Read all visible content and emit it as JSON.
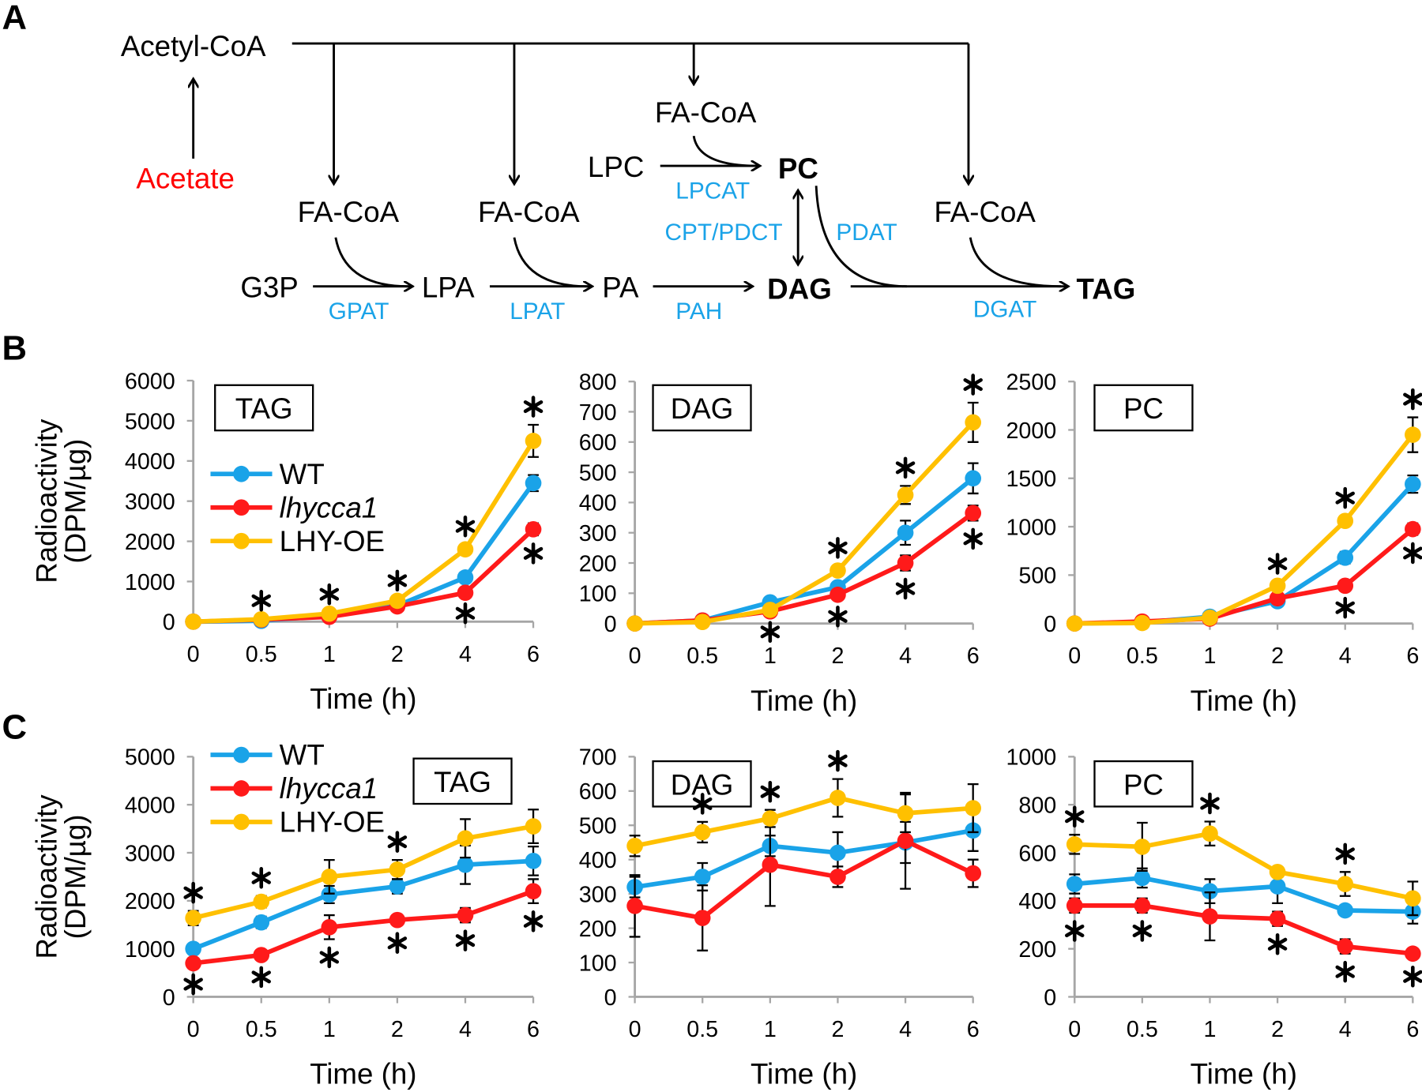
{
  "panels": {
    "a": "A",
    "b": "B",
    "c": "C"
  },
  "diagram": {
    "acetyl_coa": "Acetyl-CoA",
    "acetate": "Acetate",
    "fa_coa": "FA-CoA",
    "lpc": "LPC",
    "pc": "PC",
    "lpcat": "LPCAT",
    "cpt_pdct": "CPT/PDCT",
    "pdat": "PDAT",
    "g3p": "G3P",
    "gpat": "GPAT",
    "lpa": "LPA",
    "lpat": "LPAT",
    "pa": "PA",
    "pah": "PAH",
    "dag": "DAG",
    "dgat": "DGAT",
    "tag": "TAG",
    "colors": {
      "substrate_red": "#ff0000",
      "enzyme_blue": "#1aa3e8"
    }
  },
  "chart_data": [
    {
      "panel": "B",
      "type": "line",
      "title": "TAG",
      "xlabel": "Time (h)",
      "ylabel": [
        "Radioactivity",
        "(DPM/µg)"
      ],
      "categories": [
        "0",
        "0.5",
        "1",
        "2",
        "4",
        "6"
      ],
      "ylim": [
        0,
        6000
      ],
      "yticks": [
        0,
        1000,
        2000,
        3000,
        4000,
        5000,
        6000
      ],
      "legend": true,
      "legend_position": "top-left",
      "series": [
        {
          "name": "WT",
          "color": "#1aa3e8",
          "values": [
            0,
            20,
            150,
            400,
            1100,
            3450
          ],
          "errors": [
            0,
            10,
            20,
            40,
            80,
            200
          ]
        },
        {
          "name": "lhycca1",
          "color": "#ff1a1a",
          "values": [
            0,
            50,
            120,
            380,
            720,
            2300
          ],
          "errors": [
            0,
            10,
            20,
            40,
            60,
            150
          ]
        },
        {
          "name": "LHY-OE",
          "color": "#ffc000",
          "values": [
            0,
            60,
            200,
            520,
            1800,
            4500
          ],
          "errors": [
            0,
            10,
            30,
            50,
            120,
            400
          ]
        }
      ],
      "asterisks": [
        [
          "0.5",
          "above"
        ],
        [
          "1",
          "above"
        ],
        [
          "2",
          "above"
        ],
        [
          "4",
          "above"
        ],
        [
          "4",
          "below"
        ],
        [
          "6",
          "above"
        ],
        [
          "6",
          "below"
        ]
      ]
    },
    {
      "panel": "B",
      "type": "line",
      "title": "DAG",
      "xlabel": "Time (h)",
      "categories": [
        "0",
        "0.5",
        "1",
        "2",
        "4",
        "6"
      ],
      "ylim": [
        0,
        800
      ],
      "yticks": [
        0,
        100,
        200,
        300,
        400,
        500,
        600,
        700,
        800
      ],
      "legend": false,
      "series": [
        {
          "name": "WT",
          "color": "#1aa3e8",
          "values": [
            0,
            10,
            70,
            120,
            300,
            480
          ],
          "errors": [
            0,
            3,
            10,
            15,
            40,
            50
          ]
        },
        {
          "name": "lhycca1",
          "color": "#ff1a1a",
          "values": [
            0,
            10,
            40,
            95,
            200,
            365
          ],
          "errors": [
            0,
            3,
            8,
            12,
            25,
            25
          ]
        },
        {
          "name": "LHY-OE",
          "color": "#ffc000",
          "values": [
            0,
            5,
            45,
            175,
            425,
            665
          ],
          "errors": [
            0,
            3,
            8,
            15,
            30,
            65
          ]
        }
      ],
      "asterisks": [
        [
          "1",
          "below"
        ],
        [
          "2",
          "above"
        ],
        [
          "2",
          "below"
        ],
        [
          "4",
          "above"
        ],
        [
          "4",
          "below"
        ],
        [
          "6",
          "above"
        ],
        [
          "6",
          "below"
        ]
      ]
    },
    {
      "panel": "B",
      "type": "line",
      "title": "PC",
      "xlabel": "Time (h)",
      "categories": [
        "0",
        "0.5",
        "1",
        "2",
        "4",
        "6"
      ],
      "ylim": [
        0,
        2500
      ],
      "yticks": [
        0,
        500,
        1000,
        1500,
        2000,
        2500
      ],
      "legend": false,
      "series": [
        {
          "name": "WT",
          "color": "#1aa3e8",
          "values": [
            0,
            10,
            70,
            230,
            680,
            1440
          ],
          "errors": [
            0,
            5,
            15,
            30,
            60,
            90
          ]
        },
        {
          "name": "lhycca1",
          "color": "#ff1a1a",
          "values": [
            0,
            20,
            50,
            260,
            390,
            975
          ],
          "errors": [
            0,
            5,
            15,
            30,
            40,
            60
          ]
        },
        {
          "name": "LHY-OE",
          "color": "#ffc000",
          "values": [
            0,
            5,
            60,
            390,
            1060,
            1950
          ],
          "errors": [
            0,
            5,
            15,
            40,
            50,
            180
          ]
        }
      ],
      "asterisks": [
        [
          "2",
          "above"
        ],
        [
          "4",
          "above"
        ],
        [
          "4",
          "below"
        ],
        [
          "6",
          "above"
        ],
        [
          "6",
          "below"
        ]
      ]
    },
    {
      "panel": "C",
      "type": "line",
      "title": "TAG",
      "xlabel": "Time (h)",
      "ylabel": [
        "Radioactivity",
        "(DPM/µg)"
      ],
      "categories": [
        "0",
        "0.5",
        "1",
        "2",
        "4",
        "6"
      ],
      "ylim": [
        0,
        5000
      ],
      "yticks": [
        0,
        1000,
        2000,
        3000,
        4000,
        5000
      ],
      "legend": true,
      "legend_position": "top-left",
      "series": [
        {
          "name": "WT",
          "color": "#1aa3e8",
          "values": [
            1000,
            1550,
            2130,
            2300,
            2750,
            2830
          ],
          "errors": [
            80,
            120,
            180,
            150,
            400,
            300
          ]
        },
        {
          "name": "lhycca1",
          "color": "#ff1a1a",
          "values": [
            700,
            870,
            1450,
            1600,
            1700,
            2200
          ],
          "errors": [
            60,
            80,
            250,
            100,
            150,
            250
          ]
        },
        {
          "name": "LHY-OE",
          "color": "#ffc000",
          "values": [
            1640,
            1980,
            2500,
            2650,
            3300,
            3550
          ],
          "errors": [
            150,
            120,
            350,
            200,
            400,
            350
          ]
        }
      ],
      "asterisks": [
        [
          "0",
          "above"
        ],
        [
          "0",
          "below"
        ],
        [
          "0.5",
          "above"
        ],
        [
          "0.5",
          "below"
        ],
        [
          "1",
          "below"
        ],
        [
          "2",
          "above"
        ],
        [
          "2",
          "below"
        ],
        [
          "4",
          "below"
        ],
        [
          "6",
          "below"
        ]
      ]
    },
    {
      "panel": "C",
      "type": "line",
      "title": "DAG",
      "xlabel": "Time (h)",
      "categories": [
        "0",
        "0.5",
        "1",
        "2",
        "4",
        "6"
      ],
      "ylim": [
        0,
        700
      ],
      "yticks": [
        0,
        100,
        200,
        300,
        400,
        500,
        600,
        700
      ],
      "legend": false,
      "series": [
        {
          "name": "WT",
          "color": "#1aa3e8",
          "values": [
            320,
            350,
            440,
            420,
            450,
            485
          ],
          "errors": [
            30,
            40,
            30,
            60,
            60,
            60
          ]
        },
        {
          "name": "lhycca1",
          "color": "#ff1a1a",
          "values": [
            265,
            230,
            385,
            350,
            455,
            360
          ],
          "errors": [
            90,
            95,
            120,
            30,
            140,
            40
          ]
        },
        {
          "name": "LHY-OE",
          "color": "#ffc000",
          "values": [
            440,
            480,
            520,
            580,
            535,
            550
          ],
          "errors": [
            30,
            30,
            25,
            55,
            55,
            70
          ]
        }
      ],
      "asterisks": [
        [
          "0.5",
          "above"
        ],
        [
          "1",
          "above"
        ],
        [
          "2",
          "above"
        ]
      ]
    },
    {
      "panel": "C",
      "type": "line",
      "title": "PC",
      "xlabel": "Time (h)",
      "categories": [
        "0",
        "0.5",
        "1",
        "2",
        "4",
        "6"
      ],
      "ylim": [
        0,
        1000
      ],
      "yticks": [
        0,
        200,
        400,
        600,
        800,
        1000
      ],
      "legend": false,
      "series": [
        {
          "name": "WT",
          "color": "#1aa3e8",
          "values": [
            470,
            495,
            440,
            460,
            360,
            355
          ],
          "errors": [
            40,
            40,
            50,
            70,
            20,
            50
          ]
        },
        {
          "name": "lhycca1",
          "color": "#ff1a1a",
          "values": [
            380,
            380,
            335,
            325,
            210,
            180
          ],
          "errors": [
            30,
            30,
            100,
            30,
            30,
            20
          ]
        },
        {
          "name": "LHY-OE",
          "color": "#ffc000",
          "values": [
            635,
            625,
            680,
            520,
            470,
            410
          ],
          "errors": [
            40,
            100,
            50,
            20,
            50,
            70
          ]
        }
      ],
      "asterisks": [
        [
          "0",
          "above"
        ],
        [
          "0",
          "below"
        ],
        [
          "0.5",
          "below"
        ],
        [
          "1",
          "above"
        ],
        [
          "2",
          "below"
        ],
        [
          "4",
          "above"
        ],
        [
          "4",
          "below"
        ],
        [
          "6",
          "below"
        ]
      ]
    }
  ]
}
